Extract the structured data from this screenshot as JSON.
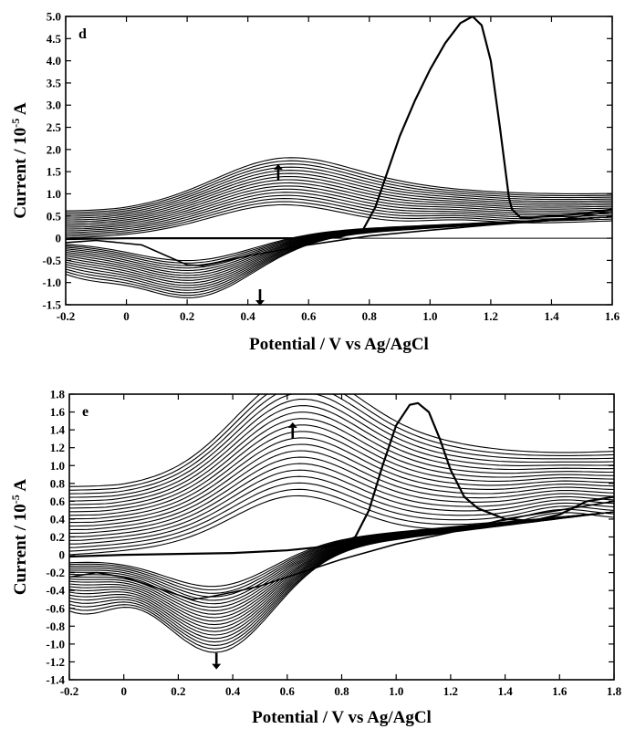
{
  "chart_data": [
    {
      "type": "line",
      "panel_label": "d",
      "xlabel": "Potential / V vs Ag/AgCl",
      "ylabel": "Current / 10",
      "ylabel_exponent": "-5",
      "ylabel_unit": " A",
      "xlim": [
        -0.2,
        1.6
      ],
      "ylim": [
        -1.5,
        5.0
      ],
      "xticks": [
        "-0.2",
        "0",
        "0.2",
        "0.4",
        "0.6",
        "0.8",
        "1.0",
        "1.2",
        "1.4",
        "1.6"
      ],
      "xtick_values": [
        -0.2,
        0,
        0.2,
        0.4,
        0.6,
        0.8,
        1.0,
        1.2,
        1.4,
        1.6
      ],
      "yticks": [
        "-1.5",
        "-1.0",
        "-0.5",
        "0",
        "0.5",
        "1.0",
        "1.5",
        "2.0",
        "2.5",
        "3.0",
        "3.5",
        "4.0",
        "4.5",
        "5.0"
      ],
      "ytick_values": [
        -1.5,
        -1.0,
        -0.5,
        0,
        0.5,
        1.0,
        1.5,
        2.0,
        2.5,
        3.0,
        3.5,
        4.0,
        4.5,
        5.0
      ],
      "zero_line": true,
      "grid": false,
      "cycles": 16,
      "first_scan": {
        "anodic": {
          "x": [
            -0.2,
            0.0,
            0.3,
            0.6,
            0.7,
            0.78,
            0.82,
            0.86,
            0.9,
            0.95,
            1.0,
            1.05,
            1.1,
            1.14,
            1.17,
            1.2,
            1.23,
            1.26,
            1.27,
            1.3,
            1.4,
            1.5,
            1.6
          ],
          "y": [
            -0.02,
            0.0,
            0.0,
            0.0,
            0.02,
            0.2,
            0.7,
            1.5,
            2.3,
            3.1,
            3.8,
            4.4,
            4.85,
            5.0,
            4.8,
            4.0,
            2.5,
            0.9,
            0.65,
            0.45,
            0.5,
            0.55,
            0.65
          ]
        },
        "cathodic": {
          "x": [
            1.6,
            1.4,
            1.2,
            1.0,
            0.8,
            0.6,
            0.4,
            0.3,
            0.25,
            0.2,
            0.15,
            0.05,
            -0.1,
            -0.2
          ],
          "y": [
            0.6,
            0.4,
            0.3,
            0.18,
            0.05,
            -0.15,
            -0.4,
            -0.55,
            -0.62,
            -0.6,
            -0.45,
            -0.15,
            -0.05,
            -0.1
          ]
        }
      },
      "series_envelope": {
        "anodic_peak_potential": 0.5,
        "anodic_peak_current_first": 0.6,
        "anodic_peak_current_last": 1.15,
        "cathodic_peak_potential": 0.22,
        "cathodic_peak_current_first": -0.65,
        "cathodic_peak_current_last": -1.45,
        "secondary_peak": {
          "x": 1.08,
          "y": 0.85
        }
      },
      "annotations": [
        {
          "type": "arrow-up",
          "x": 0.5,
          "y": 1.3
        },
        {
          "type": "arrow-down",
          "x": 0.44,
          "y": -1.15
        }
      ]
    },
    {
      "type": "line",
      "panel_label": "e",
      "xlabel": "Potential / V vs Ag/AgCl",
      "ylabel": "Current / 10",
      "ylabel_exponent": "-5",
      "ylabel_unit": " A",
      "xlim": [
        -0.2,
        1.8
      ],
      "ylim": [
        -1.4,
        1.8
      ],
      "xticks": [
        "-0.2",
        "0",
        "0.2",
        "0.4",
        "0.6",
        "0.8",
        "1.0",
        "1.2",
        "1.4",
        "1.6",
        "1.8"
      ],
      "xtick_values": [
        -0.2,
        0,
        0.2,
        0.4,
        0.6,
        0.8,
        1.0,
        1.2,
        1.4,
        1.6,
        1.8
      ],
      "yticks": [
        "-1.4",
        "-1.2",
        "-1.0",
        "-0.8",
        "-0.6",
        "-0.4",
        "-0.2",
        "0",
        "0.2",
        "0.4",
        "0.6",
        "0.8",
        "1.0",
        "1.2",
        "1.4",
        "1.6",
        "1.8"
      ],
      "ytick_values": [
        -1.4,
        -1.2,
        -1.0,
        -0.8,
        -0.6,
        -0.4,
        -0.2,
        0,
        0.2,
        0.4,
        0.6,
        0.8,
        1.0,
        1.2,
        1.4,
        1.6,
        1.8
      ],
      "zero_line": false,
      "grid": false,
      "cycles": 20,
      "first_scan": {
        "anodic": {
          "x": [
            -0.2,
            0.0,
            0.2,
            0.4,
            0.6,
            0.7,
            0.8,
            0.85,
            0.9,
            0.95,
            1.0,
            1.05,
            1.08,
            1.12,
            1.16,
            1.2,
            1.25,
            1.3,
            1.4,
            1.5,
            1.6,
            1.7,
            1.8
          ],
          "y": [
            -0.02,
            0.0,
            0.01,
            0.02,
            0.05,
            0.08,
            0.12,
            0.2,
            0.5,
            1.0,
            1.45,
            1.68,
            1.7,
            1.6,
            1.3,
            0.95,
            0.65,
            0.52,
            0.4,
            0.38,
            0.45,
            0.6,
            0.65
          ]
        },
        "cathodic": {
          "x": [
            1.8,
            1.6,
            1.4,
            1.2,
            1.0,
            0.8,
            0.6,
            0.5,
            0.4,
            0.3,
            0.25,
            0.2,
            0.1,
            0.0,
            -0.1,
            -0.2
          ],
          "y": [
            0.6,
            0.5,
            0.4,
            0.25,
            0.12,
            -0.05,
            -0.25,
            -0.35,
            -0.42,
            -0.48,
            -0.5,
            -0.45,
            -0.35,
            -0.25,
            -0.2,
            -0.25
          ]
        }
      },
      "series_envelope": {
        "anodic_peak_potential": 0.62,
        "anodic_peak_current_first": 0.5,
        "anodic_peak_current_last": 1.2,
        "cathodic_peak_potential": 0.35,
        "cathodic_peak_current_first": -0.5,
        "cathodic_peak_current_last": -1.2,
        "secondary_peak": {
          "x": 1.6,
          "y": 0.7
        }
      },
      "annotations": [
        {
          "type": "arrow-up",
          "x": 0.62,
          "y": 1.3
        },
        {
          "type": "arrow-down",
          "x": 0.34,
          "y": -1.1
        }
      ]
    }
  ]
}
